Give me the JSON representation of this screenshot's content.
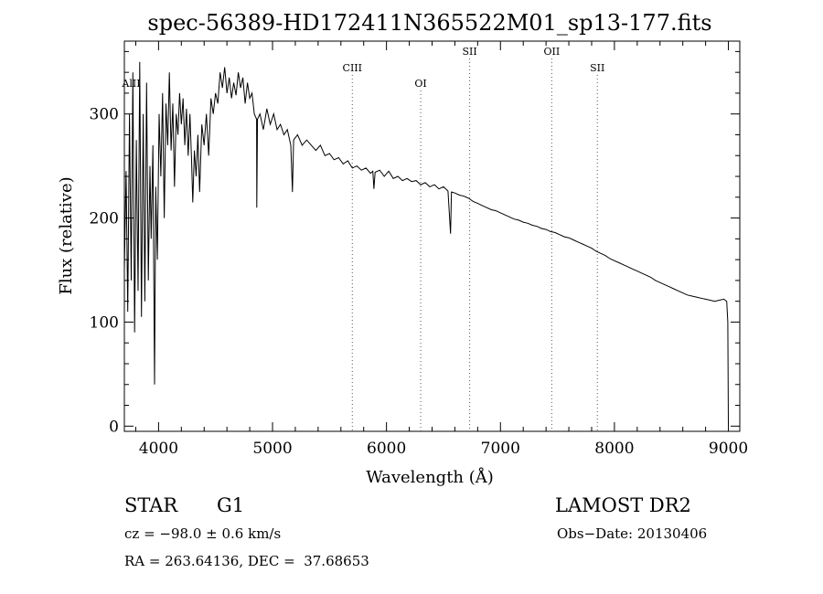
{
  "chart_data": {
    "type": "line",
    "title": "spec-56389-HD172411N365522M01_sp13-177.fits",
    "xlabel": "Wavelength (Å)",
    "ylabel": "Flux (relative)",
    "xlim": [
      3700,
      9100
    ],
    "ylim": [
      -5,
      370
    ],
    "x_ticks": [
      4000,
      5000,
      6000,
      7000,
      8000,
      9000
    ],
    "y_ticks": [
      0,
      100,
      200,
      300
    ],
    "grid": false,
    "series": [
      {
        "values": [
          [
            3700,
            150
          ],
          [
            3715,
            245
          ],
          [
            3730,
            110
          ],
          [
            3745,
            300
          ],
          [
            3760,
            140
          ],
          [
            3775,
            340
          ],
          [
            3790,
            90
          ],
          [
            3805,
            275
          ],
          [
            3820,
            130
          ],
          [
            3835,
            350
          ],
          [
            3850,
            105
          ],
          [
            3865,
            300
          ],
          [
            3880,
            120
          ],
          [
            3895,
            330
          ],
          [
            3910,
            140
          ],
          [
            3925,
            250
          ],
          [
            3935,
            180
          ],
          [
            3950,
            270
          ],
          [
            3965,
            40
          ],
          [
            3975,
            230
          ],
          [
            3990,
            160
          ],
          [
            4005,
            300
          ],
          [
            4020,
            240
          ],
          [
            4035,
            320
          ],
          [
            4050,
            200
          ],
          [
            4065,
            310
          ],
          [
            4080,
            270
          ],
          [
            4095,
            340
          ],
          [
            4110,
            265
          ],
          [
            4125,
            310
          ],
          [
            4140,
            230
          ],
          [
            4155,
            300
          ],
          [
            4170,
            280
          ],
          [
            4185,
            320
          ],
          [
            4200,
            290
          ],
          [
            4215,
            315
          ],
          [
            4230,
            270
          ],
          [
            4245,
            305
          ],
          [
            4260,
            260
          ],
          [
            4275,
            300
          ],
          [
            4290,
            255
          ],
          [
            4300,
            215
          ],
          [
            4315,
            265
          ],
          [
            4330,
            240
          ],
          [
            4345,
            280
          ],
          [
            4360,
            225
          ],
          [
            4380,
            290
          ],
          [
            4400,
            270
          ],
          [
            4420,
            300
          ],
          [
            4440,
            260
          ],
          [
            4460,
            315
          ],
          [
            4480,
            300
          ],
          [
            4500,
            320
          ],
          [
            4520,
            310
          ],
          [
            4540,
            340
          ],
          [
            4560,
            325
          ],
          [
            4580,
            345
          ],
          [
            4600,
            320
          ],
          [
            4620,
            335
          ],
          [
            4640,
            315
          ],
          [
            4660,
            330
          ],
          [
            4680,
            318
          ],
          [
            4700,
            340
          ],
          [
            4720,
            325
          ],
          [
            4740,
            335
          ],
          [
            4760,
            310
          ],
          [
            4780,
            330
          ],
          [
            4800,
            315
          ],
          [
            4820,
            320
          ],
          [
            4840,
            300
          ],
          [
            4860,
            295
          ],
          [
            4862,
            210
          ],
          [
            4868,
            295
          ],
          [
            4890,
            300
          ],
          [
            4920,
            285
          ],
          [
            4950,
            305
          ],
          [
            4980,
            290
          ],
          [
            5010,
            300
          ],
          [
            5040,
            285
          ],
          [
            5070,
            290
          ],
          [
            5100,
            280
          ],
          [
            5130,
            285
          ],
          [
            5160,
            270
          ],
          [
            5175,
            225
          ],
          [
            5185,
            275
          ],
          [
            5220,
            280
          ],
          [
            5260,
            270
          ],
          [
            5300,
            275
          ],
          [
            5340,
            270
          ],
          [
            5380,
            265
          ],
          [
            5420,
            270
          ],
          [
            5460,
            260
          ],
          [
            5500,
            262
          ],
          [
            5540,
            256
          ],
          [
            5580,
            258
          ],
          [
            5620,
            252
          ],
          [
            5660,
            255
          ],
          [
            5700,
            248
          ],
          [
            5740,
            250
          ],
          [
            5780,
            246
          ],
          [
            5820,
            248
          ],
          [
            5860,
            243
          ],
          [
            5880,
            245
          ],
          [
            5890,
            228
          ],
          [
            5900,
            244
          ],
          [
            5940,
            246
          ],
          [
            5980,
            240
          ],
          [
            6020,
            245
          ],
          [
            6060,
            238
          ],
          [
            6100,
            240
          ],
          [
            6140,
            236
          ],
          [
            6180,
            238
          ],
          [
            6220,
            235
          ],
          [
            6260,
            236
          ],
          [
            6300,
            232
          ],
          [
            6340,
            234
          ],
          [
            6380,
            230
          ],
          [
            6420,
            232
          ],
          [
            6460,
            228
          ],
          [
            6500,
            230
          ],
          [
            6540,
            226
          ],
          [
            6562,
            185
          ],
          [
            6570,
            225
          ],
          [
            6600,
            224
          ],
          [
            6640,
            222
          ],
          [
            6680,
            221
          ],
          [
            6720,
            219
          ],
          [
            6760,
            216
          ],
          [
            6800,
            214
          ],
          [
            6840,
            212
          ],
          [
            6880,
            210
          ],
          [
            6920,
            208
          ],
          [
            6960,
            207
          ],
          [
            7000,
            205
          ],
          [
            7040,
            203
          ],
          [
            7080,
            201
          ],
          [
            7120,
            199
          ],
          [
            7160,
            198
          ],
          [
            7200,
            196
          ],
          [
            7240,
            195
          ],
          [
            7280,
            193
          ],
          [
            7320,
            192
          ],
          [
            7360,
            190
          ],
          [
            7400,
            189
          ],
          [
            7440,
            187
          ],
          [
            7480,
            186
          ],
          [
            7520,
            184
          ],
          [
            7560,
            182
          ],
          [
            7600,
            181
          ],
          [
            7640,
            179
          ],
          [
            7680,
            177
          ],
          [
            7720,
            175
          ],
          [
            7760,
            173
          ],
          [
            7800,
            171
          ],
          [
            7840,
            168
          ],
          [
            7880,
            166
          ],
          [
            7920,
            164
          ],
          [
            7960,
            161
          ],
          [
            8000,
            159
          ],
          [
            8040,
            157
          ],
          [
            8080,
            155
          ],
          [
            8120,
            153
          ],
          [
            8160,
            151
          ],
          [
            8200,
            149
          ],
          [
            8240,
            147
          ],
          [
            8280,
            145
          ],
          [
            8320,
            143
          ],
          [
            8360,
            140
          ],
          [
            8400,
            138
          ],
          [
            8440,
            136
          ],
          [
            8480,
            134
          ],
          [
            8520,
            132
          ],
          [
            8560,
            130
          ],
          [
            8600,
            128
          ],
          [
            8640,
            126
          ],
          [
            8680,
            125
          ],
          [
            8720,
            124
          ],
          [
            8760,
            123
          ],
          [
            8800,
            122
          ],
          [
            8840,
            121
          ],
          [
            8880,
            120
          ],
          [
            8920,
            121
          ],
          [
            8960,
            122
          ],
          [
            8985,
            120
          ],
          [
            8995,
            100
          ],
          [
            9000,
            2
          ]
        ]
      }
    ],
    "lines": [
      {
        "label": "AlII",
        "x": 3760
      },
      {
        "label": "CIII",
        "x": 5700
      },
      {
        "label": "OI",
        "x": 6300
      },
      {
        "label": "SII",
        "x": 6730
      },
      {
        "label": "OII",
        "x": 7450
      },
      {
        "label": "SII",
        "x": 7850
      }
    ]
  },
  "info": {
    "object_class": "STAR",
    "subclass": "G1",
    "survey": "LAMOST DR2",
    "redshift": "cz = −98.0 ± 0.6 km/s",
    "obs_date": "Obs−Date: 20130406",
    "coords": "RA = 263.64136, DEC =  37.68653"
  }
}
